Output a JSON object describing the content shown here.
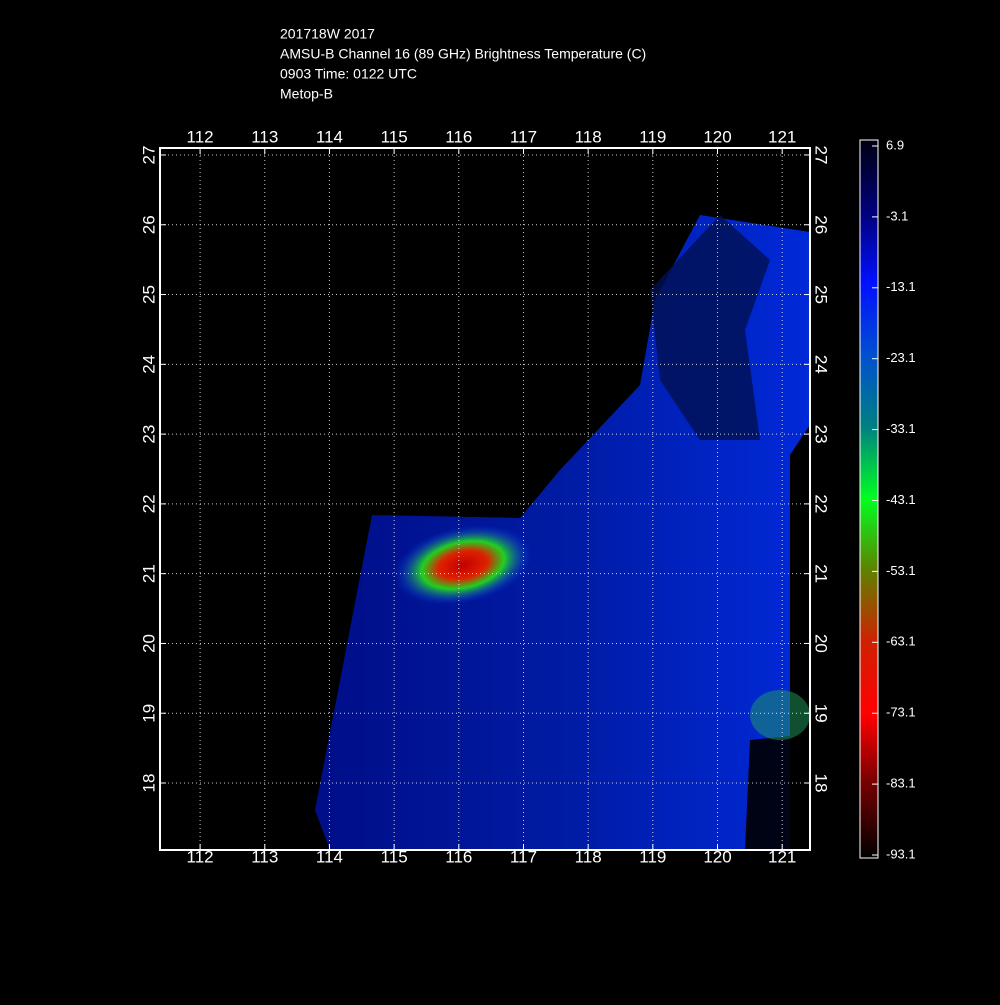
{
  "header": {
    "lines": [
      "201718W 2017",
      "AMSU-B Channel 16 (89 GHz) Brightness Temperature (C)",
      "0903 Time: 0122 UTC",
      "Metop-B"
    ]
  },
  "map": {
    "xlim": [
      111.38,
      121.43
    ],
    "ylim": [
      17.04,
      27.1
    ],
    "lon_ticks": [
      112,
      113,
      114,
      115,
      116,
      117,
      118,
      119,
      120,
      121
    ],
    "lat_ticks": [
      18,
      19,
      20,
      21,
      22,
      23,
      24,
      25,
      26,
      27
    ]
  },
  "colorbar": {
    "lim": [
      -93.1,
      6.9
    ],
    "ticks": [
      6.9,
      -3.1,
      -13.1,
      -23.1,
      -33.1,
      -43.1,
      -53.1,
      -63.1,
      -73.1,
      -83.1,
      -93.1
    ]
  }
}
